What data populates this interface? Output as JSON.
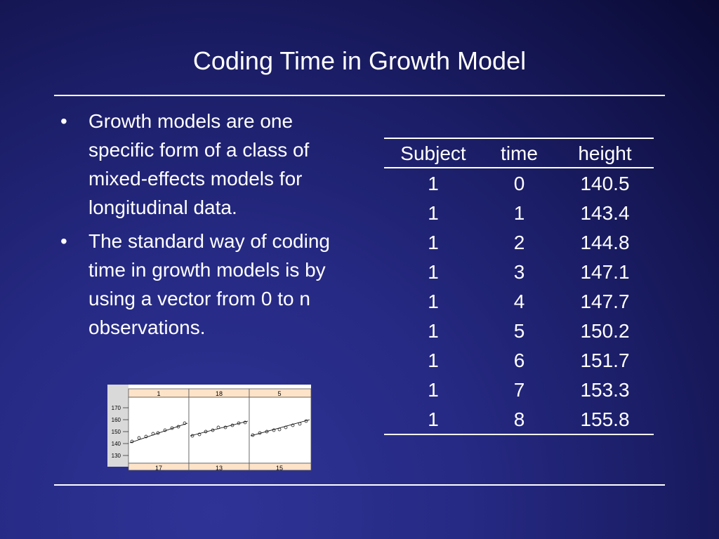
{
  "slide": {
    "title": "Coding Time in Growth Model"
  },
  "bullets": [
    "Growth models are one specific form of a class of mixed-effects models for longitudinal data.",
    "The standard way of coding time in growth models is by using a vector from 0 to n observations."
  ],
  "bullet_glyph": "•",
  "table": {
    "headers": [
      "Subject",
      "time",
      "height"
    ],
    "rows": [
      [
        "1",
        "0",
        "140.5"
      ],
      [
        "1",
        "1",
        "143.4"
      ],
      [
        "1",
        "2",
        "144.8"
      ],
      [
        "1",
        "3",
        "147.1"
      ],
      [
        "1",
        "4",
        "147.7"
      ],
      [
        "1",
        "5",
        "150.2"
      ],
      [
        "1",
        "6",
        "151.7"
      ],
      [
        "1",
        "7",
        "153.3"
      ],
      [
        "1",
        "8",
        "155.8"
      ]
    ]
  },
  "lattice": {
    "panel_labels_top": [
      "1",
      "18",
      "5"
    ],
    "panel_labels_bottom": [
      "17",
      "13",
      "15"
    ],
    "y_ticks": [
      "170",
      "160",
      "150",
      "140",
      "130"
    ],
    "strip_color": "#fde3c8"
  },
  "colors": {
    "background": "#262a84",
    "text": "#ffffff"
  }
}
